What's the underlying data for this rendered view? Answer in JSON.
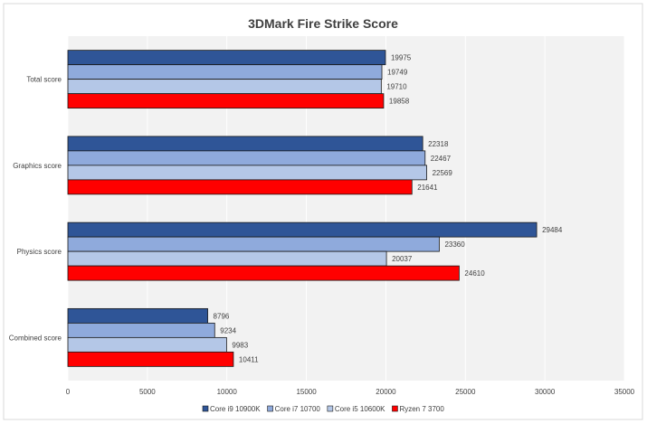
{
  "chart_data": {
    "type": "bar",
    "orientation": "horizontal",
    "title": "3DMark Fire Strike Score",
    "xlabel": "",
    "ylabel": "",
    "xlim": [
      0,
      35000
    ],
    "x_ticks": [
      0,
      5000,
      10000,
      15000,
      20000,
      25000,
      30000,
      35000
    ],
    "grid": true,
    "legend_position": "bottom",
    "categories": [
      "Total score",
      "Graphics score",
      "Physics score",
      "Combined score"
    ],
    "series": [
      {
        "name": "Core i9 10900K",
        "color": "#2F5597",
        "values": [
          19975,
          22318,
          29484,
          8796
        ]
      },
      {
        "name": "Core i7 10700",
        "color": "#8FAADC",
        "values": [
          19749,
          22467,
          23360,
          9234
        ]
      },
      {
        "name": "Core i5 10600K",
        "color": "#B4C7E7",
        "values": [
          19710,
          22569,
          20037,
          9983
        ]
      },
      {
        "name": "Ryzen 7 3700",
        "color": "#FF0000",
        "values": [
          19858,
          21641,
          24610,
          10411
        ]
      }
    ]
  }
}
